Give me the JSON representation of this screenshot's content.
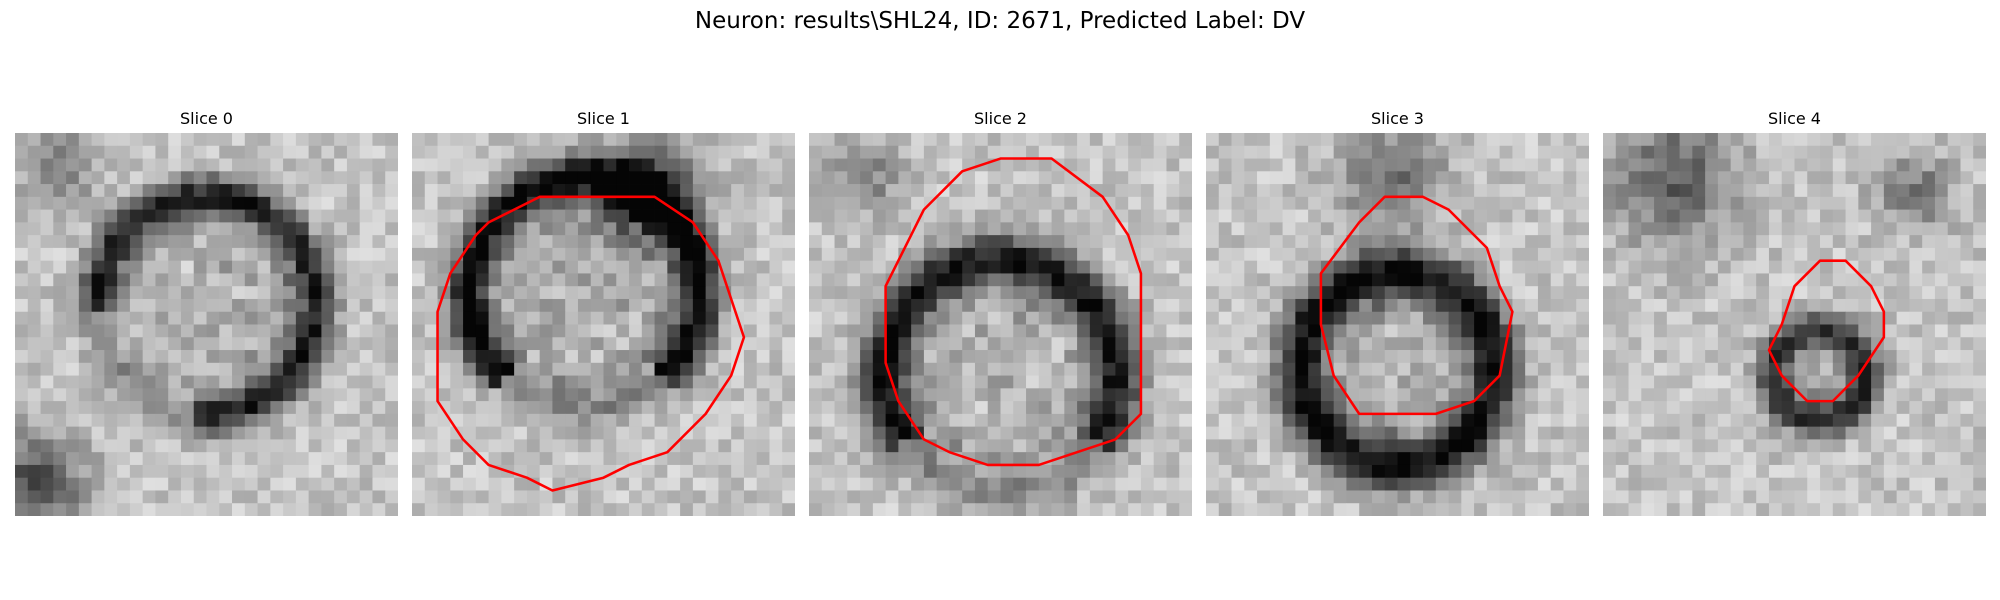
{
  "figure": {
    "title": "Neuron: results\\SHL24, ID: 2671, Predicted Label: DV"
  },
  "slices": [
    {
      "label": "Slice 0",
      "has_roi": false
    },
    {
      "label": "Slice 1",
      "has_roi": true
    },
    {
      "label": "Slice 2",
      "has_roi": true
    },
    {
      "label": "Slice 3",
      "has_roi": true
    },
    {
      "label": "Slice 4",
      "has_roi": true
    }
  ],
  "colors": {
    "roi_outline": "#ff0000",
    "background": "#ffffff"
  },
  "image_grid": {
    "pixels_per_side": 30
  }
}
